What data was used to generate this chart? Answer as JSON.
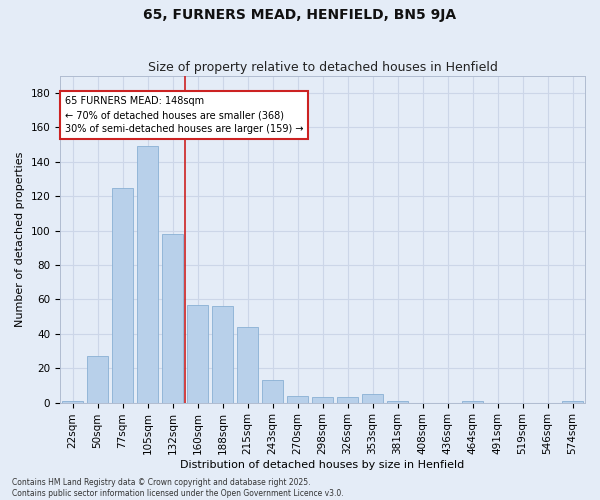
{
  "title": "65, FURNERS MEAD, HENFIELD, BN5 9JA",
  "subtitle": "Size of property relative to detached houses in Henfield",
  "xlabel": "Distribution of detached houses by size in Henfield",
  "ylabel": "Number of detached properties",
  "categories": [
    "22sqm",
    "50sqm",
    "77sqm",
    "105sqm",
    "132sqm",
    "160sqm",
    "188sqm",
    "215sqm",
    "243sqm",
    "270sqm",
    "298sqm",
    "326sqm",
    "353sqm",
    "381sqm",
    "408sqm",
    "436sqm",
    "464sqm",
    "491sqm",
    "519sqm",
    "546sqm",
    "574sqm"
  ],
  "values": [
    1,
    27,
    125,
    149,
    98,
    57,
    56,
    44,
    13,
    4,
    3,
    3,
    5,
    1,
    0,
    0,
    1,
    0,
    0,
    0,
    1
  ],
  "bar_color": "#b8d0ea",
  "bar_edge_color": "#8ab0d4",
  "grid_color": "#ccd6e8",
  "bg_color": "#e4ecf7",
  "vline_color": "#cc2222",
  "vline_x_index": 5,
  "annotation_text": "65 FURNERS MEAD: 148sqm\n← 70% of detached houses are smaller (368)\n30% of semi-detached houses are larger (159) →",
  "annotation_box_color": "#cc2222",
  "footer_text": "Contains HM Land Registry data © Crown copyright and database right 2025.\nContains public sector information licensed under the Open Government Licence v3.0.",
  "ylim": [
    0,
    190
  ],
  "yticks": [
    0,
    20,
    40,
    60,
    80,
    100,
    120,
    140,
    160,
    180
  ],
  "title_fontsize": 10,
  "subtitle_fontsize": 9,
  "xlabel_fontsize": 8,
  "ylabel_fontsize": 8,
  "tick_fontsize": 7.5,
  "annot_fontsize": 7,
  "footer_fontsize": 5.5
}
